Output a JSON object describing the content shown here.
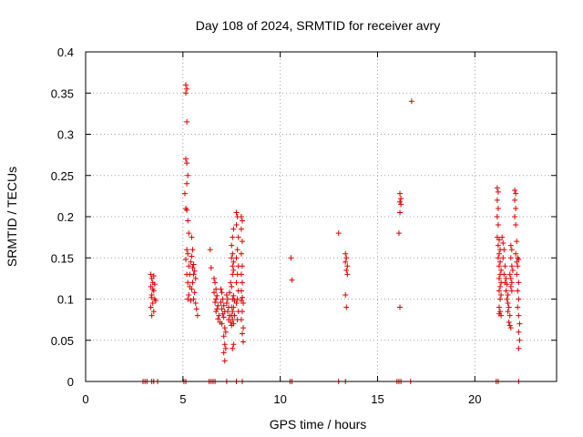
{
  "chart_data": {
    "type": "scatter",
    "title": "Day 108 of 2024, SRMTID for receiver avry",
    "xlabel": "GPS time / hours",
    "ylabel": "SRMTID / TECUs",
    "xlim": [
      0,
      24.2
    ],
    "ylim": [
      0,
      0.4
    ],
    "xticks": [
      0,
      5,
      10,
      15,
      20
    ],
    "xtick_labels": [
      "0",
      "5",
      "10",
      "15",
      "20"
    ],
    "yticks": [
      0,
      0.05,
      0.1,
      0.15,
      0.2,
      0.25,
      0.3,
      0.35,
      0.4
    ],
    "ytick_labels": [
      "0",
      "0.05",
      "0.1",
      "0.15",
      "0.2",
      "0.25",
      "0.3",
      "0.35",
      "0.4"
    ],
    "grid": true,
    "marker": "+",
    "color": "#dd0000",
    "series": [
      {
        "name": "SRMTID",
        "points": [
          [
            2.95,
            0
          ],
          [
            3.05,
            0
          ],
          [
            3.15,
            0
          ],
          [
            3.4,
            0
          ],
          [
            3.5,
            0
          ],
          [
            3.7,
            0
          ],
          [
            5.05,
            0
          ],
          [
            5.15,
            0
          ],
          [
            6.35,
            0
          ],
          [
            6.45,
            0
          ],
          [
            6.55,
            0
          ],
          [
            6.65,
            0
          ],
          [
            7.25,
            0
          ],
          [
            7.75,
            0
          ],
          [
            8.05,
            0
          ],
          [
            10.5,
            0
          ],
          [
            10.6,
            0
          ],
          [
            13.0,
            0
          ],
          [
            13.35,
            0
          ],
          [
            16.0,
            0
          ],
          [
            16.1,
            0
          ],
          [
            16.2,
            0
          ],
          [
            16.7,
            0
          ],
          [
            21.1,
            0
          ],
          [
            21.2,
            0
          ],
          [
            22.25,
            0
          ],
          [
            3.35,
            0.13
          ],
          [
            3.4,
            0.125
          ],
          [
            3.45,
            0.12
          ],
          [
            3.35,
            0.115
          ],
          [
            3.5,
            0.11
          ],
          [
            3.4,
            0.105
          ],
          [
            3.55,
            0.1
          ],
          [
            3.45,
            0.095
          ],
          [
            3.35,
            0.09
          ],
          [
            3.5,
            0.085
          ],
          [
            3.4,
            0.08
          ],
          [
            3.55,
            0.118
          ],
          [
            3.45,
            0.112
          ],
          [
            3.6,
            0.098
          ],
          [
            3.5,
            0.128
          ],
          [
            3.38,
            0.102
          ],
          [
            5.15,
            0.36
          ],
          [
            5.2,
            0.355
          ],
          [
            5.15,
            0.35
          ],
          [
            5.2,
            0.315
          ],
          [
            5.15,
            0.27
          ],
          [
            5.2,
            0.265
          ],
          [
            5.25,
            0.25
          ],
          [
            5.2,
            0.24
          ],
          [
            5.1,
            0.228
          ],
          [
            5.15,
            0.21
          ],
          [
            5.2,
            0.208
          ],
          [
            5.25,
            0.195
          ],
          [
            5.3,
            0.18
          ],
          [
            5.2,
            0.16
          ],
          [
            5.25,
            0.155
          ],
          [
            5.15,
            0.148
          ],
          [
            5.3,
            0.14
          ],
          [
            5.2,
            0.13
          ],
          [
            5.25,
            0.12
          ],
          [
            5.35,
            0.115
          ],
          [
            5.3,
            0.105
          ],
          [
            5.25,
            0.1
          ],
          [
            5.4,
            0.098
          ],
          [
            5.45,
            0.175
          ],
          [
            5.5,
            0.16
          ],
          [
            5.45,
            0.152
          ],
          [
            5.55,
            0.142
          ],
          [
            5.5,
            0.138
          ],
          [
            5.6,
            0.134
          ],
          [
            5.55,
            0.13
          ],
          [
            5.65,
            0.125
          ],
          [
            5.5,
            0.12
          ],
          [
            5.45,
            0.112
          ],
          [
            5.6,
            0.108
          ],
          [
            5.55,
            0.1
          ],
          [
            5.65,
            0.095
          ],
          [
            5.7,
            0.088
          ],
          [
            5.75,
            0.08
          ],
          [
            5.35,
            0.13
          ],
          [
            5.4,
            0.145
          ],
          [
            6.4,
            0.16
          ],
          [
            6.45,
            0.138
          ],
          [
            6.6,
            0.125
          ],
          [
            6.65,
            0.12
          ],
          [
            6.7,
            0.112
          ],
          [
            6.6,
            0.108
          ],
          [
            6.75,
            0.104
          ],
          [
            6.7,
            0.1
          ],
          [
            6.65,
            0.096
          ],
          [
            6.8,
            0.092
          ],
          [
            6.75,
            0.088
          ],
          [
            6.7,
            0.085
          ],
          [
            6.85,
            0.08
          ],
          [
            6.8,
            0.076
          ],
          [
            6.9,
            0.072
          ],
          [
            6.95,
            0.112
          ],
          [
            7.0,
            0.108
          ],
          [
            7.05,
            0.1
          ],
          [
            6.95,
            0.096
          ],
          [
            7.1,
            0.092
          ],
          [
            7.0,
            0.088
          ],
          [
            7.15,
            0.085
          ],
          [
            7.05,
            0.082
          ],
          [
            7.1,
            0.078
          ],
          [
            7.0,
            0.07
          ],
          [
            7.15,
            0.065
          ],
          [
            7.2,
            0.06
          ],
          [
            7.1,
            0.055
          ],
          [
            7.15,
            0.045
          ],
          [
            7.2,
            0.04
          ],
          [
            7.1,
            0.035
          ],
          [
            7.15,
            0.025
          ],
          [
            7.25,
            0.105
          ],
          [
            7.3,
            0.1
          ],
          [
            7.25,
            0.095
          ],
          [
            7.35,
            0.09
          ],
          [
            7.3,
            0.085
          ],
          [
            7.4,
            0.08
          ],
          [
            7.35,
            0.075
          ],
          [
            7.45,
            0.072
          ],
          [
            7.4,
            0.108
          ],
          [
            7.5,
            0.115
          ],
          [
            7.45,
            0.12
          ],
          [
            7.5,
            0.09
          ],
          [
            7.55,
            0.085
          ],
          [
            7.5,
            0.08
          ],
          [
            7.55,
            0.075
          ],
          [
            7.5,
            0.068
          ],
          [
            7.6,
            0.07
          ],
          [
            7.55,
            0.13
          ],
          [
            7.6,
            0.135
          ],
          [
            7.55,
            0.14
          ],
          [
            7.6,
            0.145
          ],
          [
            7.5,
            0.15
          ],
          [
            7.55,
            0.155
          ],
          [
            7.5,
            0.165
          ],
          [
            7.55,
            0.175
          ],
          [
            7.6,
            0.185
          ],
          [
            7.55,
            0.1
          ],
          [
            7.6,
            0.104
          ],
          [
            7.65,
            0.098
          ],
          [
            7.6,
            0.09
          ],
          [
            7.65,
            0.08
          ],
          [
            7.6,
            0.045
          ],
          [
            7.55,
            0.04
          ],
          [
            7.75,
            0.205
          ],
          [
            7.8,
            0.2
          ],
          [
            7.75,
            0.19
          ],
          [
            7.85,
            0.175
          ],
          [
            7.8,
            0.16
          ],
          [
            7.75,
            0.15
          ],
          [
            7.85,
            0.14
          ],
          [
            7.8,
            0.13
          ],
          [
            7.75,
            0.12
          ],
          [
            7.85,
            0.11
          ],
          [
            7.8,
            0.1
          ],
          [
            7.75,
            0.095
          ],
          [
            7.85,
            0.085
          ],
          [
            7.8,
            0.075
          ],
          [
            8.0,
            0.2
          ],
          [
            8.05,
            0.195
          ],
          [
            8.0,
            0.185
          ],
          [
            8.05,
            0.17
          ],
          [
            8.0,
            0.155
          ],
          [
            8.05,
            0.14
          ],
          [
            8.0,
            0.13
          ],
          [
            8.05,
            0.12
          ],
          [
            8.0,
            0.11
          ],
          [
            8.05,
            0.102
          ],
          [
            8.0,
            0.098
          ],
          [
            8.1,
            0.095
          ],
          [
            8.05,
            0.085
          ],
          [
            8.0,
            0.075
          ],
          [
            8.1,
            0.065
          ],
          [
            8.05,
            0.058
          ],
          [
            8.1,
            0.048
          ],
          [
            10.55,
            0.15
          ],
          [
            10.6,
            0.123
          ],
          [
            13.0,
            0.18
          ],
          [
            13.35,
            0.155
          ],
          [
            13.4,
            0.15
          ],
          [
            13.35,
            0.145
          ],
          [
            13.45,
            0.14
          ],
          [
            13.4,
            0.135
          ],
          [
            13.45,
            0.13
          ],
          [
            13.35,
            0.105
          ],
          [
            13.4,
            0.09
          ],
          [
            16.15,
            0.228
          ],
          [
            16.2,
            0.222
          ],
          [
            16.15,
            0.218
          ],
          [
            16.2,
            0.215
          ],
          [
            16.15,
            0.205
          ],
          [
            16.1,
            0.18
          ],
          [
            16.15,
            0.09
          ],
          [
            16.75,
            0.34
          ],
          [
            21.15,
            0.235
          ],
          [
            21.2,
            0.23
          ],
          [
            21.15,
            0.22
          ],
          [
            21.2,
            0.21
          ],
          [
            21.15,
            0.2
          ],
          [
            21.2,
            0.19
          ],
          [
            21.15,
            0.175
          ],
          [
            21.25,
            0.172
          ],
          [
            21.2,
            0.165
          ],
          [
            21.3,
            0.16
          ],
          [
            21.25,
            0.155
          ],
          [
            21.2,
            0.15
          ],
          [
            21.3,
            0.145
          ],
          [
            21.25,
            0.14
          ],
          [
            21.35,
            0.135
          ],
          [
            21.3,
            0.13
          ],
          [
            21.25,
            0.125
          ],
          [
            21.35,
            0.12
          ],
          [
            21.3,
            0.115
          ],
          [
            21.25,
            0.11
          ],
          [
            21.35,
            0.105
          ],
          [
            21.3,
            0.1
          ],
          [
            21.25,
            0.09
          ],
          [
            21.3,
            0.085
          ],
          [
            21.25,
            0.082
          ],
          [
            21.35,
            0.08
          ],
          [
            21.4,
            0.175
          ],
          [
            21.45,
            0.168
          ],
          [
            21.5,
            0.16
          ],
          [
            21.45,
            0.15
          ],
          [
            21.55,
            0.14
          ],
          [
            21.5,
            0.13
          ],
          [
            21.6,
            0.125
          ],
          [
            21.55,
            0.12
          ],
          [
            21.65,
            0.118
          ],
          [
            21.6,
            0.11
          ],
          [
            21.7,
            0.105
          ],
          [
            21.65,
            0.1
          ],
          [
            21.7,
            0.095
          ],
          [
            21.75,
            0.09
          ],
          [
            21.7,
            0.085
          ],
          [
            21.8,
            0.08
          ],
          [
            21.75,
            0.072
          ],
          [
            21.8,
            0.068
          ],
          [
            21.85,
            0.065
          ],
          [
            21.8,
            0.13
          ],
          [
            21.85,
            0.125
          ],
          [
            21.9,
            0.12
          ],
          [
            21.85,
            0.115
          ],
          [
            21.9,
            0.11
          ],
          [
            21.95,
            0.135
          ],
          [
            21.9,
            0.14
          ],
          [
            21.85,
            0.15
          ],
          [
            21.9,
            0.16
          ],
          [
            21.85,
            0.165
          ],
          [
            22.05,
            0.232
          ],
          [
            22.1,
            0.228
          ],
          [
            22.05,
            0.22
          ],
          [
            22.1,
            0.21
          ],
          [
            22.05,
            0.2
          ],
          [
            22.1,
            0.19
          ],
          [
            22.15,
            0.17
          ],
          [
            22.1,
            0.155
          ],
          [
            22.2,
            0.15
          ],
          [
            22.15,
            0.145
          ],
          [
            22.25,
            0.148
          ],
          [
            22.2,
            0.14
          ],
          [
            22.15,
            0.13
          ],
          [
            22.25,
            0.12
          ],
          [
            22.2,
            0.11
          ],
          [
            22.25,
            0.1
          ],
          [
            22.2,
            0.09
          ],
          [
            22.25,
            0.08
          ],
          [
            22.3,
            0.07
          ],
          [
            22.25,
            0.06
          ],
          [
            22.3,
            0.05
          ],
          [
            22.25,
            0.04
          ]
        ]
      }
    ]
  }
}
